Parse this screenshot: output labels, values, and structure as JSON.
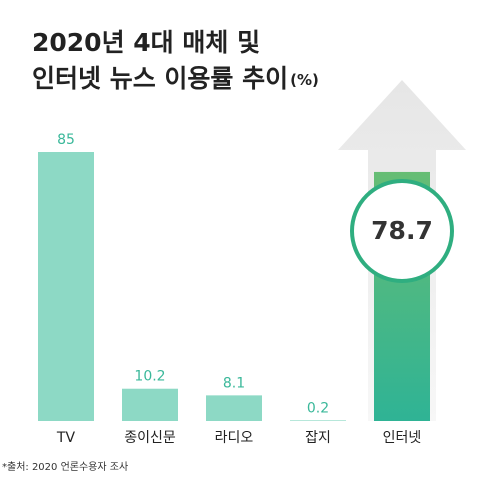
{
  "chart_data": {
    "type": "bar",
    "title": [
      "2020년 4대 매체 및",
      "인터넷 뉴스 이용률 추이"
    ],
    "unit": "(%)",
    "categories": [
      "TV",
      "종이신문",
      "라디오",
      "잡지",
      "인터넷"
    ],
    "values": [
      85,
      10.2,
      8.1,
      0.2,
      78.7
    ],
    "colors": [
      "#8dd9c5",
      "#8dd9c5",
      "#8dd9c5",
      "#8dd9c5",
      "#3cb890"
    ],
    "highlight": 4,
    "source": "*출처: 2020 언론수용자 조사"
  }
}
